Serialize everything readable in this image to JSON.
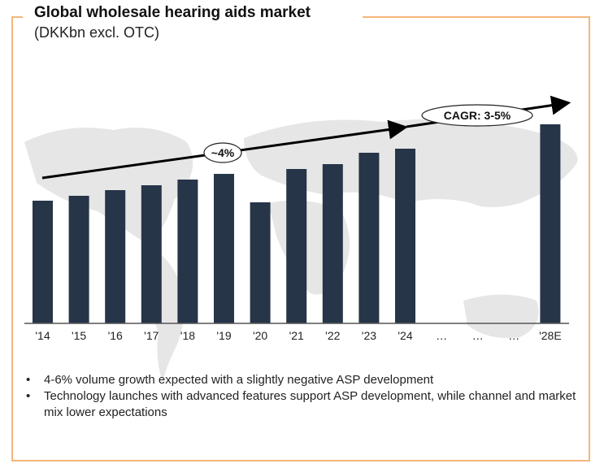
{
  "header": {
    "title": "Global wholesale hearing aids market",
    "subtitle": "(DKKbn excl. OTC)"
  },
  "colors": {
    "bar": "#263548",
    "frame": "#f5b67a",
    "map": "#e6e6e6",
    "arrow": "#000000"
  },
  "chart_data": {
    "type": "bar",
    "title": "Global wholesale hearing aids market",
    "subtitle": "(DKKbn excl. OTC)",
    "xlabel": "",
    "ylabel": "DKKbn",
    "y_axis_shown": false,
    "grid": false,
    "categories": [
      "'14",
      "'15",
      "'16",
      "'17",
      "'18",
      "'19",
      "'20",
      "'21",
      "'22",
      "'23",
      "'24",
      "…",
      "…",
      "…",
      "'28E"
    ],
    "values": [
      15.1,
      15.7,
      16.4,
      17.0,
      17.7,
      18.4,
      14.9,
      19.0,
      19.6,
      21.0,
      21.5,
      null,
      null,
      null,
      24.5
    ],
    "value_note": "Values estimated relative to bar heights; no y-axis values printed",
    "ylim": [
      0,
      26
    ],
    "annotations": [
      {
        "type": "arrow",
        "from": "'14",
        "to": "'24",
        "label": "~4%"
      },
      {
        "type": "arrow",
        "from": "'24",
        "to": "'28E",
        "label": "CAGR: 3-5%"
      }
    ]
  },
  "bullets": [
    "4-6% volume growth expected with a slightly negative ASP development",
    "Technology launches with advanced features support ASP development, while channel and market mix lower expectations"
  ],
  "bullet_glyph": "•"
}
